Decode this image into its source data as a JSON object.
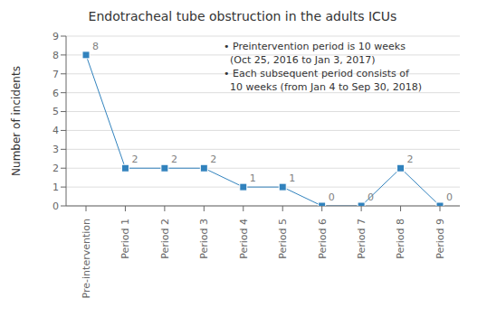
{
  "chart_data": {
    "type": "line",
    "title": "Endotracheal tube obstruction in the adults ICUs",
    "ylabel": "Number of incidents",
    "categories": [
      "Pre-intervention",
      "Period 1",
      "Period 2",
      "Period 3",
      "Period 4",
      "Period 5",
      "Period 6",
      "Period 7",
      "Period 8",
      "Period 9"
    ],
    "values": [
      8,
      2,
      2,
      2,
      1,
      1,
      0,
      0,
      2,
      0
    ],
    "ylim": [
      0,
      9
    ],
    "yticks": [
      0,
      1,
      2,
      3,
      4,
      5,
      6,
      7,
      8,
      9
    ],
    "grid": true,
    "marker": "square",
    "data_labels": true,
    "annotations": [
      "• Preintervention period is 10 weeks\n  (Oct 25, 2016 to Jan 3, 2017)\n• Each subsequent period consists of\n  10 weeks (from Jan 4 to Sep 30, 2018)"
    ]
  }
}
